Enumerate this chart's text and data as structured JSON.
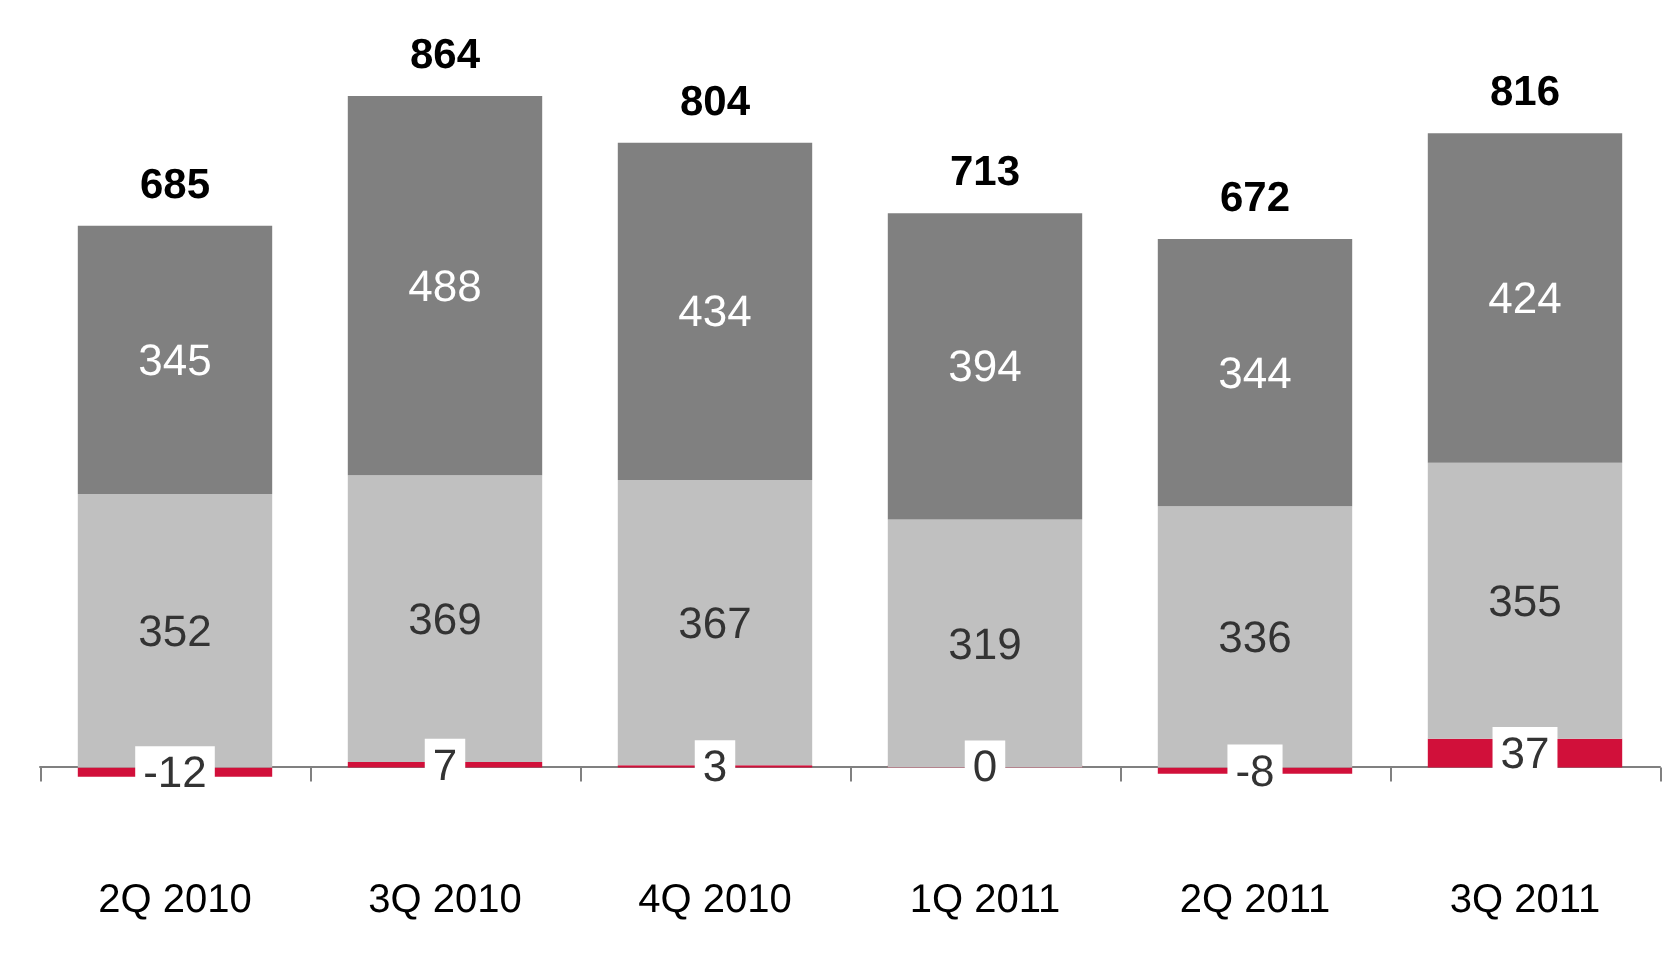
{
  "chart_data": {
    "type": "bar",
    "stacked": true,
    "grid": false,
    "categories": [
      "2Q 2010",
      "3Q 2010",
      "4Q 2010",
      "1Q 2011",
      "2Q 2011",
      "3Q 2011"
    ],
    "series": [
      {
        "color": "#d1103a",
        "values": [
          -12,
          7,
          3,
          0,
          -8,
          37
        ],
        "value_labels": [
          "-12",
          "7",
          "3",
          "0",
          "-8",
          "37"
        ]
      },
      {
        "color": "#c0c0c0",
        "values": [
          352,
          369,
          367,
          319,
          336,
          355
        ],
        "value_labels": [
          "352",
          "369",
          "367",
          "319",
          "336",
          "355"
        ]
      },
      {
        "color": "#808080",
        "values": [
          345,
          488,
          434,
          394,
          344,
          424
        ],
        "value_labels": [
          "345",
          "488",
          "434",
          "394",
          "344",
          "424"
        ]
      }
    ],
    "totals": [
      "685",
      "864",
      "804",
      "713",
      "672",
      "816"
    ]
  }
}
